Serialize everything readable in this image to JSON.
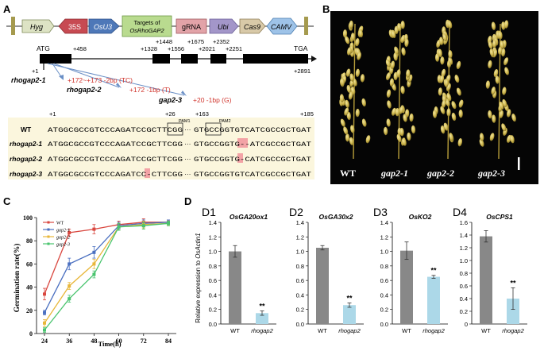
{
  "panels": {
    "A": "A",
    "B": "B",
    "C": "C",
    "D": "D"
  },
  "panelA": {
    "construct": {
      "hyg": "Hyg",
      "p35s": "35S",
      "osu3": "OsU3",
      "targets_line1": "Targets of",
      "targets_line2": "OsRhoGAP2",
      "grna": "gRNA",
      "ubi": "Ubi",
      "cas9": "Cas9",
      "camv": "CAMV"
    },
    "gene": {
      "atg": "ATG",
      "tga": "TGA",
      "plus1": "+1",
      "pos": [
        "+458",
        "+1328",
        "+1448",
        "+1556",
        "+1675",
        "+2021",
        "+2251",
        "+2352",
        "+2891"
      ]
    },
    "mutations": [
      {
        "name": "rhogap2-1",
        "desc": "+172~+173  -2bp (TC)"
      },
      {
        "name": "rhogap2-2",
        "desc": "+172  -1bp (T)"
      },
      {
        "name": "gap2-3",
        "desc": "+20  -1bp (G)"
      }
    ],
    "align": {
      "p1": "+1",
      "p26": "+26",
      "p163": "+163",
      "p185": "+185",
      "pam1": "PAM1",
      "pam2": "PAM2",
      "rows": [
        {
          "name": "WT",
          "seq1": "ATGGCGCCGTCCCAGATCCGCTTCGG",
          "seq2": "GTGCCGGTGTCATCGCCGCTGAT"
        },
        {
          "name": "rhogap2-1",
          "seq1": "ATGGCGCCGTCCCAGATCCGCTTCGG",
          "seq2": "GTGCCGGTG--ATCGCCGCTGAT"
        },
        {
          "name": "rhogap2-2",
          "seq1": "ATGGCGCCGTCCCAGATCCGCTTCGG",
          "seq2": "GTGCCGGTG-CATCGCCGCTGAT"
        },
        {
          "name": "rhogap2-3",
          "seq1": "ATGGCGCCGTCCCAGATCC-CTTCGG",
          "seq2": "GTGCCGGTGTCATCGCCGCTGAT"
        }
      ],
      "ellipsis": "···"
    }
  },
  "panelB": {
    "labels": [
      "WT",
      "gap2-1",
      "gap2-2",
      "gap2-3"
    ]
  },
  "chart_data": [
    {
      "type": "line",
      "xlabel": "Time(h)",
      "ylabel": "Germination rate(%)",
      "x": [
        24,
        36,
        48,
        60,
        72,
        84
      ],
      "ylim": [
        0,
        100
      ],
      "yticks": [
        0,
        20,
        40,
        60,
        80,
        100
      ],
      "legend": "top-left",
      "series": [
        {
          "name": "WT",
          "color": "#d9473f",
          "values": [
            34,
            87,
            90,
            94,
            96,
            96
          ],
          "err": [
            5,
            3,
            4,
            3,
            3,
            2
          ]
        },
        {
          "name": "gap2-1",
          "color": "#4a6fc0",
          "values": [
            18,
            60,
            70,
            93,
            95,
            96
          ],
          "err": [
            2,
            5,
            5,
            3,
            3,
            2
          ]
        },
        {
          "name": "gap2-2",
          "color": "#e8b73a",
          "values": [
            9,
            41,
            60,
            92,
            94,
            95
          ],
          "err": [
            3,
            3,
            4,
            3,
            3,
            2
          ]
        },
        {
          "name": "gap2-3",
          "color": "#49c46e",
          "values": [
            3,
            30,
            51,
            92,
            93,
            95
          ],
          "err": [
            2,
            3,
            3,
            3,
            3,
            2
          ]
        }
      ]
    },
    {
      "type": "bar",
      "panel": "D1",
      "title": "OsGA20ox1",
      "ylabel": "Relative expression to OsActin1",
      "categories": [
        "WT",
        "rhogap2"
      ],
      "values": [
        1.0,
        0.15
      ],
      "err": [
        0.08,
        0.03
      ],
      "ylim": [
        0,
        1.4
      ],
      "yticks": [
        "0.0",
        "0.2",
        "0.4",
        "0.6",
        "0.8",
        "1.0",
        "1.2",
        "1.4"
      ],
      "sig": "**"
    },
    {
      "type": "bar",
      "panel": "D2",
      "title": "OsGA30x2",
      "categories": [
        "WT",
        "rhogap2"
      ],
      "values": [
        1.05,
        0.26
      ],
      "err": [
        0.03,
        0.03
      ],
      "ylim": [
        0,
        1.4
      ],
      "yticks": [
        "0.0",
        "0.2",
        "0.4",
        "0.6",
        "0.8",
        "1.0",
        "1.2",
        "1.4"
      ],
      "sig": "**"
    },
    {
      "type": "bar",
      "panel": "D3",
      "title": "OsKO2",
      "categories": [
        "WT",
        "rhogap2"
      ],
      "values": [
        1.01,
        0.65
      ],
      "err": [
        0.12,
        0.02
      ],
      "ylim": [
        0,
        1.4
      ],
      "yticks": [
        "0.0",
        "0.2",
        "0.4",
        "0.6",
        "0.8",
        "1.0",
        "1.2",
        "1.4"
      ],
      "sig": "**"
    },
    {
      "type": "bar",
      "panel": "D4",
      "title": "OsCPS1",
      "categories": [
        "WT",
        "rhogap2"
      ],
      "values": [
        1.38,
        0.4
      ],
      "err": [
        0.09,
        0.17
      ],
      "ylim": [
        0,
        1.6
      ],
      "yticks": [
        "0",
        "0.2",
        "0.4",
        "0.6",
        "0.8",
        "1.0",
        "1.2",
        "1.4",
        "1.6"
      ],
      "sig": "**"
    }
  ]
}
